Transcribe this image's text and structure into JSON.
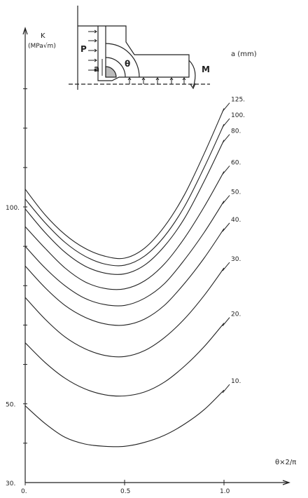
{
  "chart_data": {
    "type": "line",
    "title": "",
    "xlabel": "θ×2/π",
    "ylabel": "K",
    "ylabel_unit": "(MPa√m)",
    "xlim": [
      0,
      1.05
    ],
    "ylim": [
      30,
      135
    ],
    "y_ticks": [
      {
        "value": 30,
        "label": "30."
      },
      {
        "value": 50,
        "label": "50."
      },
      {
        "value": 100,
        "label": "100."
      }
    ],
    "x_ticks": [
      {
        "value": 0,
        "label": "0."
      },
      {
        "value": 0.5,
        "label": "0.5"
      },
      {
        "value": 1.0,
        "label": "1.0"
      }
    ],
    "legend_title": "a (mm)",
    "x": [
      0,
      0.1,
      0.2,
      0.3,
      0.4,
      0.5,
      0.6,
      0.7,
      0.8,
      0.9,
      1.0
    ],
    "series": [
      {
        "name": "10.",
        "values": [
          49.5,
          45.0,
          41.5,
          39.8,
          39.2,
          39.2,
          40.2,
          42.0,
          44.8,
          48.5,
          53.5
        ]
      },
      {
        "name": "20.",
        "values": [
          65.5,
          60.5,
          56.5,
          53.8,
          52.3,
          52.0,
          53.0,
          55.5,
          59.5,
          64.5,
          70.5
        ]
      },
      {
        "name": "30.",
        "values": [
          77.0,
          71.5,
          67.0,
          64.0,
          62.3,
          62.0,
          63.5,
          66.8,
          71.5,
          77.5,
          84.5
        ]
      },
      {
        "name": "40.",
        "values": [
          85.0,
          79.5,
          75.0,
          72.0,
          70.3,
          70.0,
          71.5,
          75.0,
          80.5,
          87.0,
          94.5
        ]
      },
      {
        "name": "50.",
        "values": [
          90.0,
          84.5,
          80.0,
          76.8,
          75.2,
          75.0,
          76.8,
          80.5,
          86.5,
          93.5,
          101.5
        ]
      },
      {
        "name": "60.",
        "values": [
          95.0,
          89.5,
          84.5,
          81.0,
          79.3,
          79.2,
          81.2,
          85.5,
          92.0,
          100.0,
          109.0
        ]
      },
      {
        "name": "80.",
        "values": [
          99.5,
          93.5,
          88.5,
          85.0,
          83.2,
          83.0,
          85.2,
          90.0,
          97.0,
          106.5,
          117.0
        ]
      },
      {
        "name": "100.",
        "values": [
          102.0,
          96.0,
          91.0,
          87.5,
          85.5,
          85.2,
          87.5,
          92.5,
          100.0,
          110.0,
          121.0
        ]
      },
      {
        "name": "125.",
        "values": [
          104.5,
          98.0,
          93.0,
          89.5,
          87.5,
          87.0,
          89.5,
          95.0,
          103.0,
          113.5,
          125.0
        ]
      }
    ],
    "grid": false,
    "legend": "right-of-curve-ends"
  },
  "inset": {
    "labels": {
      "p": "P",
      "a": "a",
      "theta": "θ",
      "m": "M"
    }
  },
  "colors": {
    "ink": "#222222",
    "background": "#ffffff"
  }
}
